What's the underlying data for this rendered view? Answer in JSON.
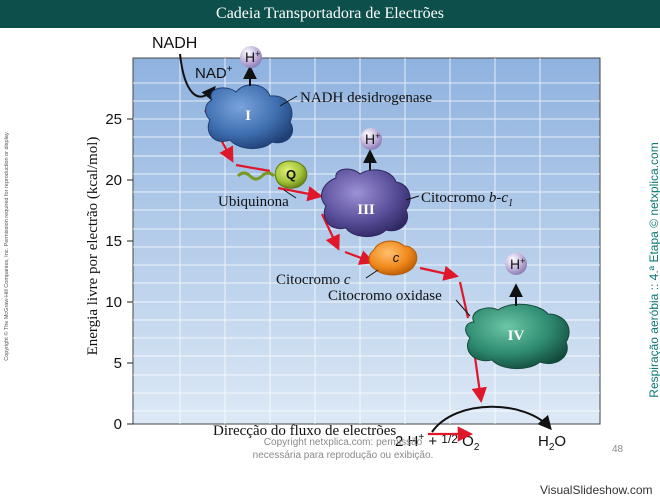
{
  "title": "Cadeia Transportadora de Electrões",
  "y_axis": {
    "label": "Energia livre por electrão (kcal/mol)",
    "ticks": [
      "0",
      "5",
      "10",
      "15",
      "20",
      "25"
    ]
  },
  "x_axis_label": "Direcção do fluxo de electrões",
  "molecules": {
    "nadh": "NADH",
    "nad": "NAD",
    "nad_sup": "+",
    "h": "H",
    "h_sup": "+",
    "q": "Q",
    "c": "c"
  },
  "complexes": {
    "c1": {
      "roman": "I",
      "label": "NADH desidrogenase"
    },
    "c3": {
      "roman": "III",
      "label_prefix": "Citocromo ",
      "label_italic": "b-c",
      "label_sub": "1"
    },
    "c4": {
      "roman": "IV",
      "label": "Citocromo oxidase"
    }
  },
  "labels": {
    "ubiquinona": "Ubiquinona",
    "citocromo_c_prefix": "Citocromo ",
    "citocromo_c_italic": "c"
  },
  "reaction": {
    "left_prefix": "2 H",
    "left_sup": "+",
    "left_mid": " + ",
    "half": "1/2",
    "o2": " O",
    "o2_sub": "2",
    "right": "H",
    "right_sub": "2",
    "right_suffix": "O"
  },
  "copyright_left": "Copyright © The McGraw-Hill Companies, Inc. Permission required for reproduction or display.",
  "right_vertical": "Respiração aeróbia :: 4.ª Etapa © netxplica.com",
  "bottom_note_1": "Copyright netxplica.com: permissão",
  "bottom_note_2": "necessária para reprodução ou exibição.",
  "page_number": "48",
  "brand": "VisualSlideshow.com",
  "colors": {
    "title_bg": "#0d4f4a",
    "arrow_red": "#e0162b",
    "complex_blue": "#3f6fb0",
    "complex_purple": "#5a4f9a",
    "complex_green": "#2e8a70",
    "q_green": "#a3c43a",
    "c_orange": "#f08a1c",
    "h_sphere": "#c9bce0"
  }
}
